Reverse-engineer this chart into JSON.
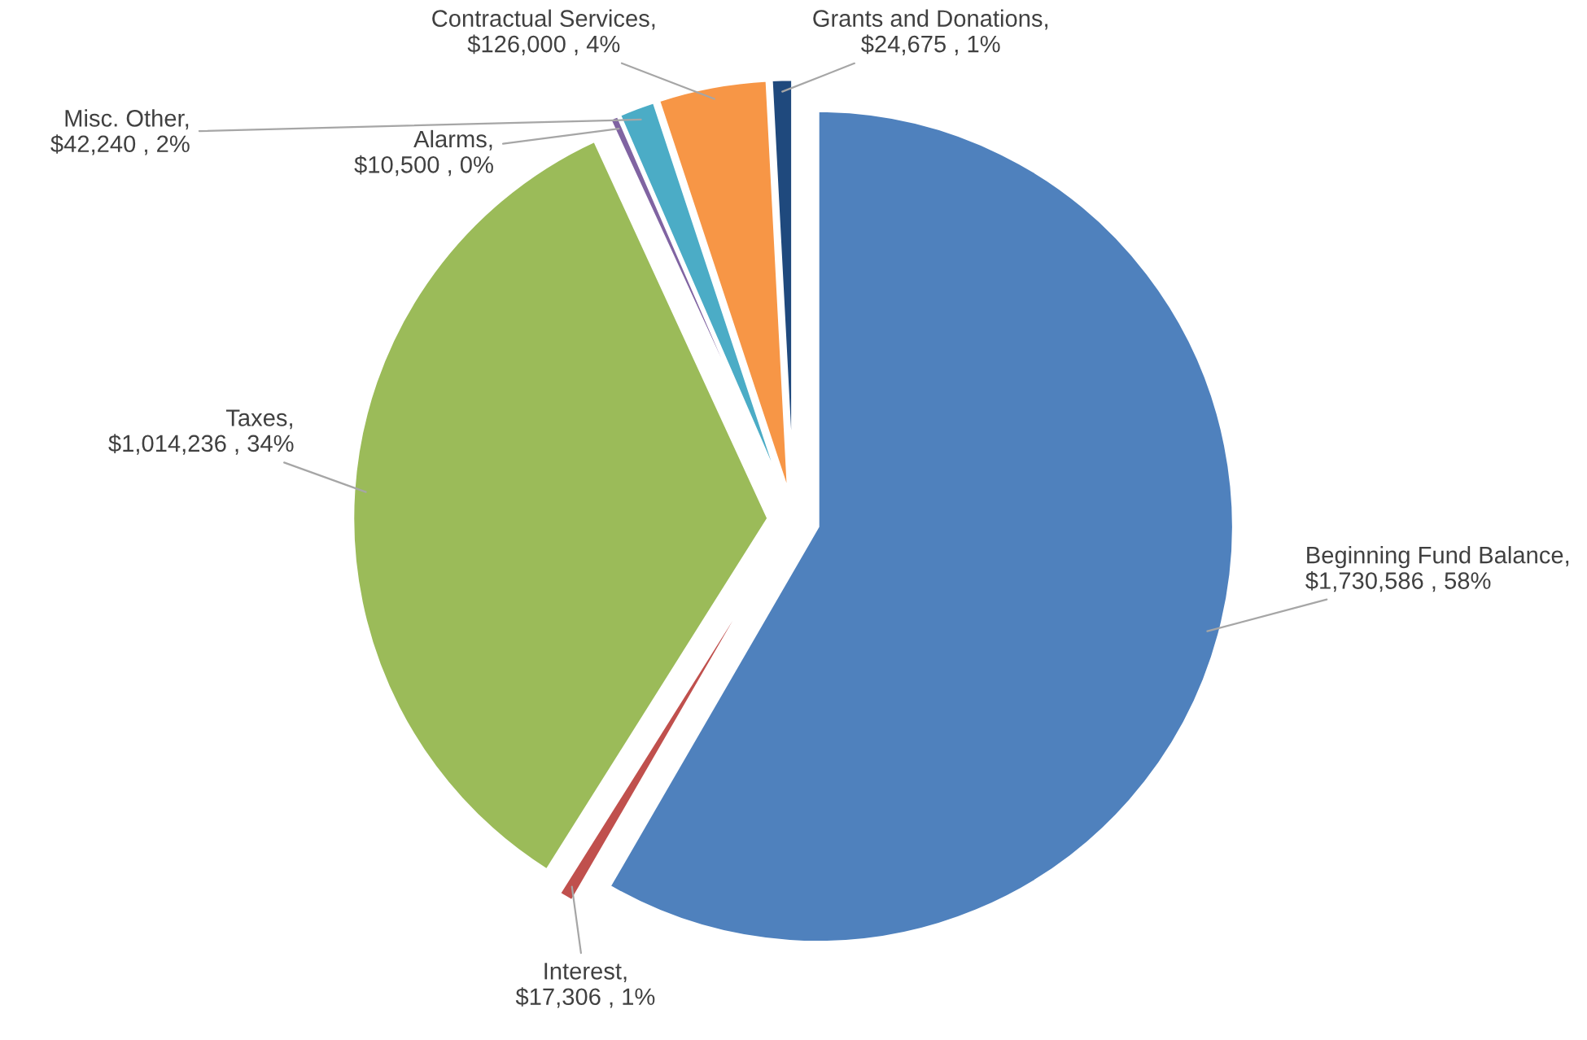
{
  "chart_data": {
    "type": "pie",
    "categories": [
      "Beginning Fund Balance",
      "Interest",
      "Taxes",
      "Alarms",
      "Misc. Other",
      "Contractual Services",
      "Grants and Donations"
    ],
    "values": [
      1730586,
      17306,
      1014236,
      10500,
      42240,
      126000,
      24675
    ],
    "value_labels": [
      ", $1,730,586 , 58%",
      ", $17,306 , 1%",
      ", $1,014,236 , 34%",
      ", $10,500 , 0%",
      ", $42,240 , 2%",
      ", $126,000 , 4%",
      ", $24,675 , 1%"
    ],
    "colors": [
      "#4f81bd",
      "#c0504d",
      "#9bbb59",
      "#8064a2",
      "#4bacc6",
      "#f79646",
      "#1f497d"
    ],
    "legend": false
  }
}
